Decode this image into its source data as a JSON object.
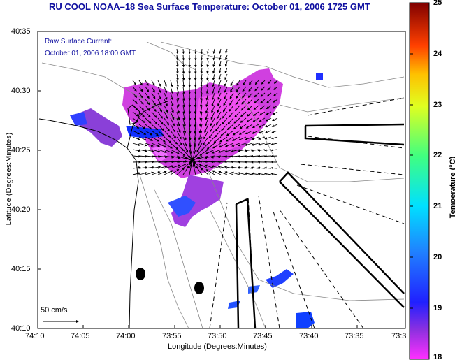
{
  "header": {
    "title": "RU COOL  NOAA–18  Sea Surface Temperature:  October 01, 2006 1725 GMT"
  },
  "annotation": {
    "line1": "Raw Surface Current:",
    "line2": "October 01, 2006 18:00 GMT"
  },
  "axes": {
    "xlabel": "Longitude (Degrees:Minutes)",
    "ylabel": "Latitude (Degrees:Minutes)",
    "xticks": [
      "74:10",
      "74:05",
      "74:00",
      "73:55",
      "73:50",
      "73:45",
      "73:40",
      "73:35",
      "73:3"
    ],
    "yticks": [
      "40:35",
      "40:30",
      "40:25",
      "40:20",
      "40:15",
      "40:10"
    ]
  },
  "scale": {
    "label": "50 cm/s"
  },
  "colorbar": {
    "title": "Temperature (°C)",
    "ticks": [
      "25",
      "24",
      "23",
      "22",
      "21",
      "20",
      "19",
      "18"
    ],
    "range": [
      18,
      25
    ]
  },
  "colors": {
    "title": "#1010a0",
    "sst_warm": "#e040e0",
    "sst_cool": "#2030ff"
  }
}
